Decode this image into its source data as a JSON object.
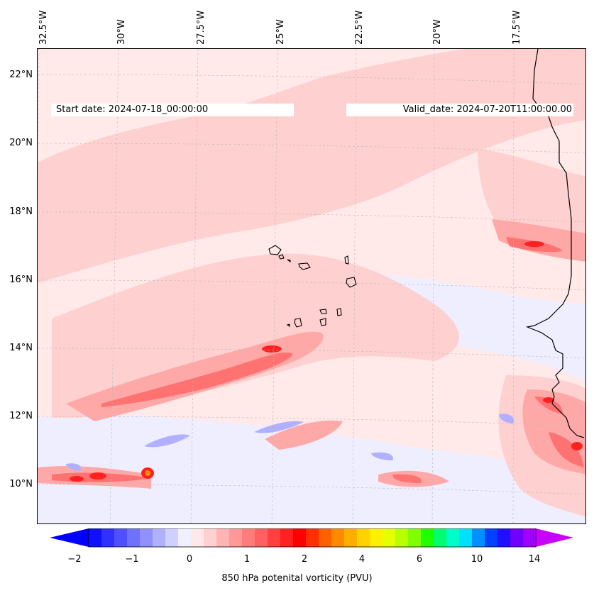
{
  "header": {
    "start_date": "Start date: 2024-07-18_00:00:00",
    "valid_date": "Valid_date: 2024-07-20T11:00:00.00"
  },
  "axes": {
    "longitude_labels": [
      "32.5°W",
      "30°W",
      "27.5°W",
      "25°W",
      "22.5°W",
      "20°W",
      "17.5°W"
    ],
    "latitude_labels": [
      "22°N",
      "20°N",
      "18°N",
      "16°N",
      "14°N",
      "12°N",
      "10°N"
    ]
  },
  "colorbar": {
    "label": "850 hPa potenital vorticity (PVU)",
    "ticks": [
      "−2",
      "−1",
      "0",
      "1",
      "2",
      "4",
      "6",
      "10",
      "14"
    ],
    "colors": [
      "#1010ff",
      "#3030ff",
      "#5050ff",
      "#7070ff",
      "#9090ff",
      "#b0b0ff",
      "#d0d0ff",
      "#efefff",
      "#ffe8e8",
      "#ffd0d0",
      "#ffb4b4",
      "#ff9898",
      "#ff7c7c",
      "#ff6060",
      "#ff4040",
      "#ff2020",
      "#ff0000",
      "#ff3000",
      "#ff6000",
      "#ff8a00",
      "#ffae00",
      "#ffd200",
      "#fff000",
      "#e4ff00",
      "#b8ff00",
      "#80ff00",
      "#20ff00",
      "#00ff70",
      "#00ffc8",
      "#00e0ff",
      "#0090ff",
      "#0040ff",
      "#2010ff",
      "#7000ff",
      "#a000ff"
    ],
    "min_arrow_color": "#0000ff",
    "max_arrow_color": "#c800ff"
  },
  "field": {
    "background": "#ffe9e9",
    "colors": {
      "weak_negative": "#eeeeff",
      "negative": "#b0b0ff",
      "light_positive": "#ffd0d0",
      "mid_positive": "#ffa8a8",
      "strong_positive": "#ff7272",
      "peak": "#ff2020",
      "extreme": "#ff8a00"
    }
  }
}
